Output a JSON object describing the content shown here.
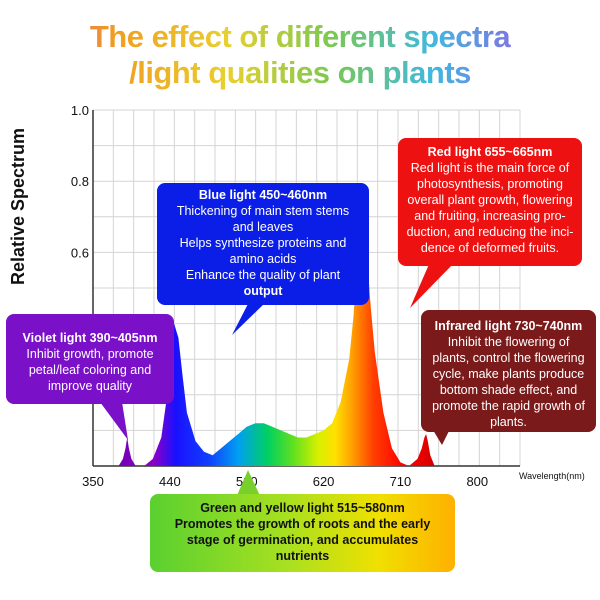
{
  "title_line1": "The effect of different spectra",
  "title_line2": "/light qualities on plants",
  "chart_data": {
    "type": "area",
    "title": "The effect of different spectra /light qualities on plants",
    "xlabel": "Wavelength(nm)",
    "ylabel": "Relative Spectrum",
    "xlim": [
      350,
      850
    ],
    "ylim": [
      0,
      1.0
    ],
    "x_ticks": [
      "350",
      "440",
      "530",
      "620",
      "710",
      "800"
    ],
    "y_ticks": [
      "0.6",
      "0.8",
      "1.0"
    ],
    "grid": true,
    "series": [
      {
        "x": [
          380,
          385,
          388,
          390,
          392,
          395,
          400,
          410,
          420,
          430,
          438,
          442,
          445,
          450,
          455,
          460,
          470,
          480,
          490,
          500,
          510,
          520,
          530,
          540,
          550,
          560,
          570,
          580,
          590,
          600,
          610,
          620,
          630,
          640,
          650,
          655,
          660,
          665,
          670,
          675,
          680,
          690,
          700,
          710,
          720,
          730,
          735,
          738,
          740,
          742,
          745,
          750
        ],
        "y": [
          0.0,
          0.02,
          0.05,
          0.08,
          0.05,
          0.02,
          0.0,
          0.0,
          0.02,
          0.08,
          0.22,
          0.35,
          0.4,
          0.36,
          0.25,
          0.15,
          0.07,
          0.04,
          0.03,
          0.05,
          0.07,
          0.09,
          0.11,
          0.12,
          0.12,
          0.11,
          0.1,
          0.09,
          0.08,
          0.08,
          0.09,
          0.1,
          0.12,
          0.18,
          0.3,
          0.42,
          0.6,
          0.72,
          0.62,
          0.45,
          0.32,
          0.15,
          0.05,
          0.01,
          0.0,
          0.02,
          0.05,
          0.08,
          0.09,
          0.07,
          0.03,
          0.0
        ]
      }
    ]
  },
  "annotations": {
    "blue": {
      "heading": "Blue light 450~460nm",
      "lines": [
        "Thickening of main stem stems",
        "and leaves",
        "Helps synthesize proteins and",
        "amino acids",
        "Enhance the quality of plant"
      ],
      "tail": "output",
      "color": "#0a1ee8"
    },
    "red": {
      "heading": "Red light 655~665nm",
      "lines": [
        "Red light is the main force of",
        "photosynthesis, promoting",
        "overall plant growth, flowering",
        "and fruiting, increasing pro-",
        "duction, and reducing the inci-",
        "dence of deformed fruits."
      ],
      "color": "#ee1111"
    },
    "violet": {
      "heading": "Violet light 390~405nm",
      "lines": [
        "Inhibit growth, promote",
        "petal/leaf coloring and",
        "improve quality"
      ],
      "color": "#7a10c8"
    },
    "infrared": {
      "heading": "Infrared light 730~740nm",
      "lines": [
        "Inhibit the flowering of",
        "plants, control the flowering",
        "cycle, make plants produce",
        "bottom shade effect, and",
        "promote the rapid growth of",
        "plants."
      ],
      "color": "#7a1a1a"
    },
    "green": {
      "heading": "Green and yellow light 515~580nm",
      "lines": [
        "Promotes the growth of roots and the early",
        "stage of germination, and accumulates",
        "nutrients"
      ]
    }
  }
}
